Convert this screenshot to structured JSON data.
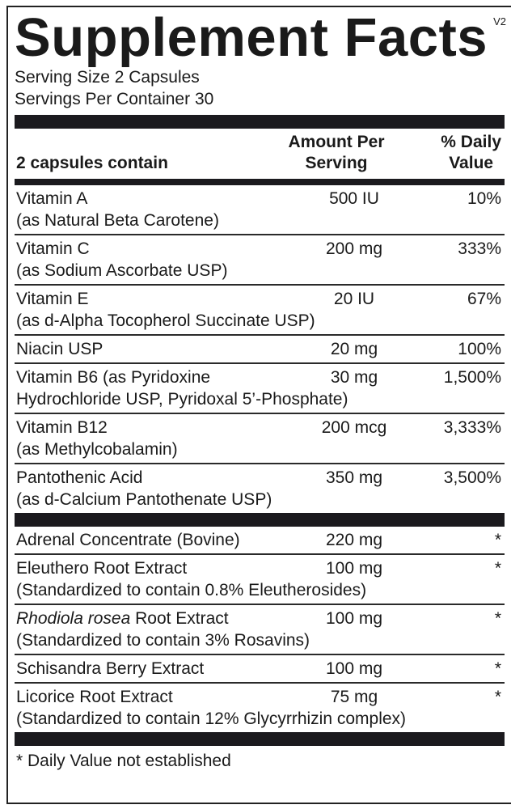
{
  "title": "Supplement Facts",
  "version": "V2",
  "serving_size": "Serving Size 2 Capsules",
  "servings_per_container": "Servings Per Container 30",
  "header": {
    "contain": "2 capsules contain",
    "amount_1": "Amount Per",
    "amount_2": "Serving",
    "dv_1": "% Daily",
    "dv_2": "Value"
  },
  "vitamins": [
    {
      "name": "Vitamin A",
      "sub": "(as Natural Beta Carotene)",
      "amount": "500 IU",
      "dv": "10%"
    },
    {
      "name": "Vitamin C",
      "sub": "(as Sodium Ascorbate USP)",
      "amount": "200 mg",
      "dv": "333%"
    },
    {
      "name": "Vitamin E",
      "sub": "(as d-Alpha Tocopherol Succinate USP)",
      "amount": "20 IU",
      "dv": "67%"
    },
    {
      "name": "Niacin USP",
      "amount": "20 mg",
      "dv": "100%"
    },
    {
      "name": "Vitamin B6 (as Pyridoxine",
      "sub": "Hydrochloride USP, Pyridoxal 5’-Phosphate)",
      "amount": "30 mg",
      "dv": "1,500%"
    },
    {
      "name": "Vitamin B12",
      "sub": "(as Methylcobalamin)",
      "amount": "200 mcg",
      "dv": "3,333%"
    },
    {
      "name": "Pantothenic Acid",
      "sub": "(as d-Calcium Pantothenate USP)",
      "amount": "350 mg",
      "dv": "3,500%"
    }
  ],
  "extracts": [
    {
      "name": "Adrenal Concentrate (Bovine)",
      "amount": "220 mg",
      "dv": "*"
    },
    {
      "name": "Eleuthero Root Extract",
      "sub": "(Standardized to contain 0.8% Eleutherosides)",
      "amount": "100 mg",
      "dv": "*"
    },
    {
      "name_italic": "Rhodiola rosea",
      "name": " Root Extract",
      "sub": "(Standardized to contain 3% Rosavins)",
      "amount": "100 mg",
      "dv": "*"
    },
    {
      "name": "Schisandra Berry Extract",
      "amount": "100 mg",
      "dv": "*"
    },
    {
      "name": "Licorice Root Extract",
      "sub": "(Standardized to contain 12% Glycyrrhizin complex)",
      "amount": "75 mg",
      "dv": "*"
    }
  ],
  "footnote": "* Daily Value not established"
}
